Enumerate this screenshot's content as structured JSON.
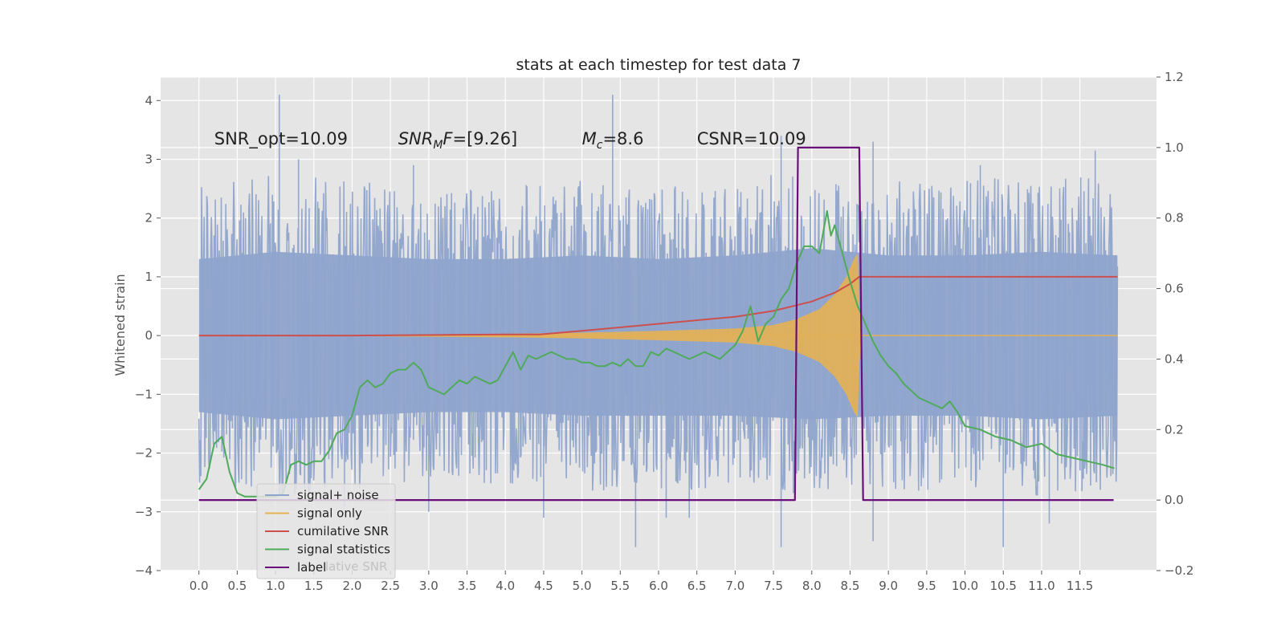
{
  "chart_data": {
    "type": "line",
    "title": "stats at each timestep for test data 7",
    "ylabel": "Whitened strain",
    "xlabel": "",
    "xlim": [
      -0.5,
      12.5
    ],
    "ylim": [
      -4.0,
      4.4
    ],
    "y2lim": [
      -0.2,
      1.2
    ],
    "grid": true,
    "x_ticks": [
      "0.0",
      "0.5",
      "1.0",
      "1.5",
      "2.0",
      "2.5",
      "3.0",
      "3.5",
      "4.0",
      "4.5",
      "5.0",
      "5.5",
      "6.0",
      "6.5",
      "7.0",
      "7.5",
      "8.0",
      "8.5",
      "9.0",
      "9.5",
      "10.0",
      "10.5",
      "11.0",
      "11.5"
    ],
    "y_ticks": [
      "4",
      "3",
      "2",
      "1",
      "0",
      "−1",
      "−2",
      "−3",
      "−4"
    ],
    "y2_ticks": [
      "1.2",
      "1.0",
      "0.8",
      "0.6",
      "0.4",
      "0.2",
      "0.0",
      "−0.2"
    ],
    "annotations": [
      {
        "text": "SNR_opt=10.09",
        "x": 0.2,
        "y": 3.35
      },
      {
        "text": "SNR_MF=[9.26]",
        "x": 2.6,
        "y": 3.35
      },
      {
        "text": "M_c=8.6",
        "x": 5.0,
        "y": 3.35
      },
      {
        "text": "CSNR=10.09",
        "x": 6.5,
        "y": 3.35
      }
    ],
    "legend_placement": "lower-left",
    "legend_overlap_text": "lative SNR",
    "series": [
      {
        "name": "signal+ noise",
        "axis": "left",
        "color": "#8fa4cc",
        "x_range": [
          0.0,
          11.99
        ],
        "envelope_upper": [
          [
            0.0,
            2.1
          ],
          [
            1.0,
            2.3
          ],
          [
            2.0,
            2.2
          ],
          [
            3.0,
            2.1
          ],
          [
            4.0,
            2.1
          ],
          [
            5.0,
            2.2
          ],
          [
            6.0,
            2.1
          ],
          [
            7.0,
            2.2
          ],
          [
            8.0,
            2.4
          ],
          [
            9.0,
            2.2
          ],
          [
            10.0,
            2.2
          ],
          [
            11.0,
            2.3
          ],
          [
            11.99,
            2.2
          ]
        ],
        "envelope_lower": [
          [
            0.0,
            -2.1
          ],
          [
            1.0,
            -2.3
          ],
          [
            2.0,
            -2.2
          ],
          [
            3.0,
            -2.1
          ],
          [
            4.0,
            -2.1
          ],
          [
            5.0,
            -2.2
          ],
          [
            6.0,
            -2.2
          ],
          [
            7.0,
            -2.2
          ],
          [
            8.0,
            -2.3
          ],
          [
            9.0,
            -2.2
          ],
          [
            10.0,
            -2.2
          ],
          [
            11.0,
            -2.3
          ],
          [
            11.99,
            -2.2
          ]
        ],
        "spikes": [
          [
            1.05,
            4.1
          ],
          [
            5.4,
            4.1
          ],
          [
            1.3,
            3.0
          ],
          [
            7.6,
            3.4
          ],
          [
            8.8,
            3.3
          ],
          [
            11.7,
            3.15
          ],
          [
            2.8,
            2.9
          ],
          [
            10.2,
            2.9
          ],
          [
            3.0,
            -3.0
          ],
          [
            5.7,
            -3.6
          ],
          [
            6.1,
            -3.1
          ],
          [
            6.4,
            -3.1
          ],
          [
            7.6,
            -3.6
          ],
          [
            10.5,
            -3.6
          ],
          [
            11.1,
            -3.2
          ],
          [
            8.8,
            -3.5
          ],
          [
            4.5,
            -3.1
          ],
          [
            1.9,
            -2.9
          ]
        ]
      },
      {
        "name": "signal only",
        "axis": "left",
        "color": "#e6b153",
        "x": [
          0.0,
          2.0,
          4.0,
          5.0,
          6.0,
          7.0,
          7.5,
          7.8,
          8.1,
          8.3,
          8.45,
          8.55,
          8.6,
          8.62,
          8.65,
          11.99
        ],
        "amplitude": [
          0.0,
          0.01,
          0.03,
          0.05,
          0.08,
          0.12,
          0.18,
          0.28,
          0.45,
          0.7,
          1.0,
          1.3,
          1.4,
          0.5,
          0.0,
          0.0
        ]
      },
      {
        "name": "cumilative SNR",
        "axis": "left",
        "color": "#cc4f4f",
        "x": [
          0.0,
          2.0,
          4.0,
          4.45,
          5.0,
          6.0,
          7.0,
          7.5,
          8.0,
          8.3,
          8.5,
          8.62,
          8.65,
          11.99
        ],
        "values": [
          0.0,
          0.0,
          0.02,
          0.02,
          0.08,
          0.2,
          0.32,
          0.42,
          0.58,
          0.73,
          0.88,
          1.0,
          1.0,
          1.0
        ]
      },
      {
        "name": "signal statistics",
        "axis": "right",
        "color": "#4faa5a",
        "x": [
          0.0,
          0.1,
          0.2,
          0.3,
          0.4,
          0.5,
          0.6,
          0.8,
          1.0,
          1.1,
          1.2,
          1.3,
          1.4,
          1.5,
          1.6,
          1.7,
          1.8,
          1.9,
          2.0,
          2.1,
          2.2,
          2.3,
          2.4,
          2.5,
          2.6,
          2.7,
          2.8,
          2.9,
          3.0,
          3.1,
          3.2,
          3.3,
          3.4,
          3.5,
          3.6,
          3.7,
          3.8,
          3.9,
          4.0,
          4.1,
          4.2,
          4.3,
          4.4,
          4.5,
          4.6,
          4.7,
          4.8,
          4.9,
          5.0,
          5.1,
          5.2,
          5.3,
          5.4,
          5.5,
          5.6,
          5.7,
          5.8,
          5.9,
          6.0,
          6.1,
          6.2,
          6.3,
          6.4,
          6.5,
          6.6,
          6.7,
          6.8,
          6.9,
          7.0,
          7.1,
          7.2,
          7.3,
          7.4,
          7.5,
          7.6,
          7.7,
          7.8,
          7.9,
          8.0,
          8.1,
          8.2,
          8.25,
          8.3,
          8.4,
          8.5,
          8.6,
          8.7,
          8.8,
          8.9,
          9.0,
          9.1,
          9.2,
          9.3,
          9.4,
          9.5,
          9.6,
          9.7,
          9.8,
          9.9,
          10.0,
          10.2,
          10.4,
          10.6,
          10.8,
          11.0,
          11.2,
          11.4,
          11.6,
          11.8,
          11.95
        ],
        "values": [
          0.03,
          0.06,
          0.16,
          0.18,
          0.08,
          0.02,
          0.01,
          0.01,
          0.01,
          0.02,
          0.1,
          0.11,
          0.1,
          0.11,
          0.11,
          0.14,
          0.19,
          0.2,
          0.24,
          0.32,
          0.34,
          0.32,
          0.33,
          0.36,
          0.37,
          0.37,
          0.39,
          0.37,
          0.32,
          0.31,
          0.3,
          0.32,
          0.34,
          0.33,
          0.35,
          0.34,
          0.33,
          0.34,
          0.38,
          0.42,
          0.37,
          0.41,
          0.4,
          0.41,
          0.42,
          0.41,
          0.4,
          0.4,
          0.39,
          0.39,
          0.38,
          0.38,
          0.39,
          0.38,
          0.4,
          0.38,
          0.38,
          0.42,
          0.41,
          0.43,
          0.42,
          0.41,
          0.4,
          0.41,
          0.42,
          0.41,
          0.4,
          0.42,
          0.44,
          0.48,
          0.55,
          0.45,
          0.5,
          0.52,
          0.57,
          0.6,
          0.67,
          0.72,
          0.72,
          0.7,
          0.82,
          0.75,
          0.78,
          0.7,
          0.62,
          0.55,
          0.5,
          0.45,
          0.41,
          0.38,
          0.36,
          0.33,
          0.31,
          0.29,
          0.28,
          0.27,
          0.26,
          0.28,
          0.25,
          0.21,
          0.2,
          0.18,
          0.17,
          0.15,
          0.16,
          0.13,
          0.12,
          0.11,
          0.1,
          0.09
        ]
      },
      {
        "name": "label",
        "axis": "right",
        "color": "#6a0f7a",
        "x": [
          0.0,
          7.78,
          7.82,
          8.62,
          8.67,
          11.94
        ],
        "values": [
          0.0,
          0.0,
          1.0,
          1.0,
          0.0,
          0.0
        ]
      }
    ]
  }
}
